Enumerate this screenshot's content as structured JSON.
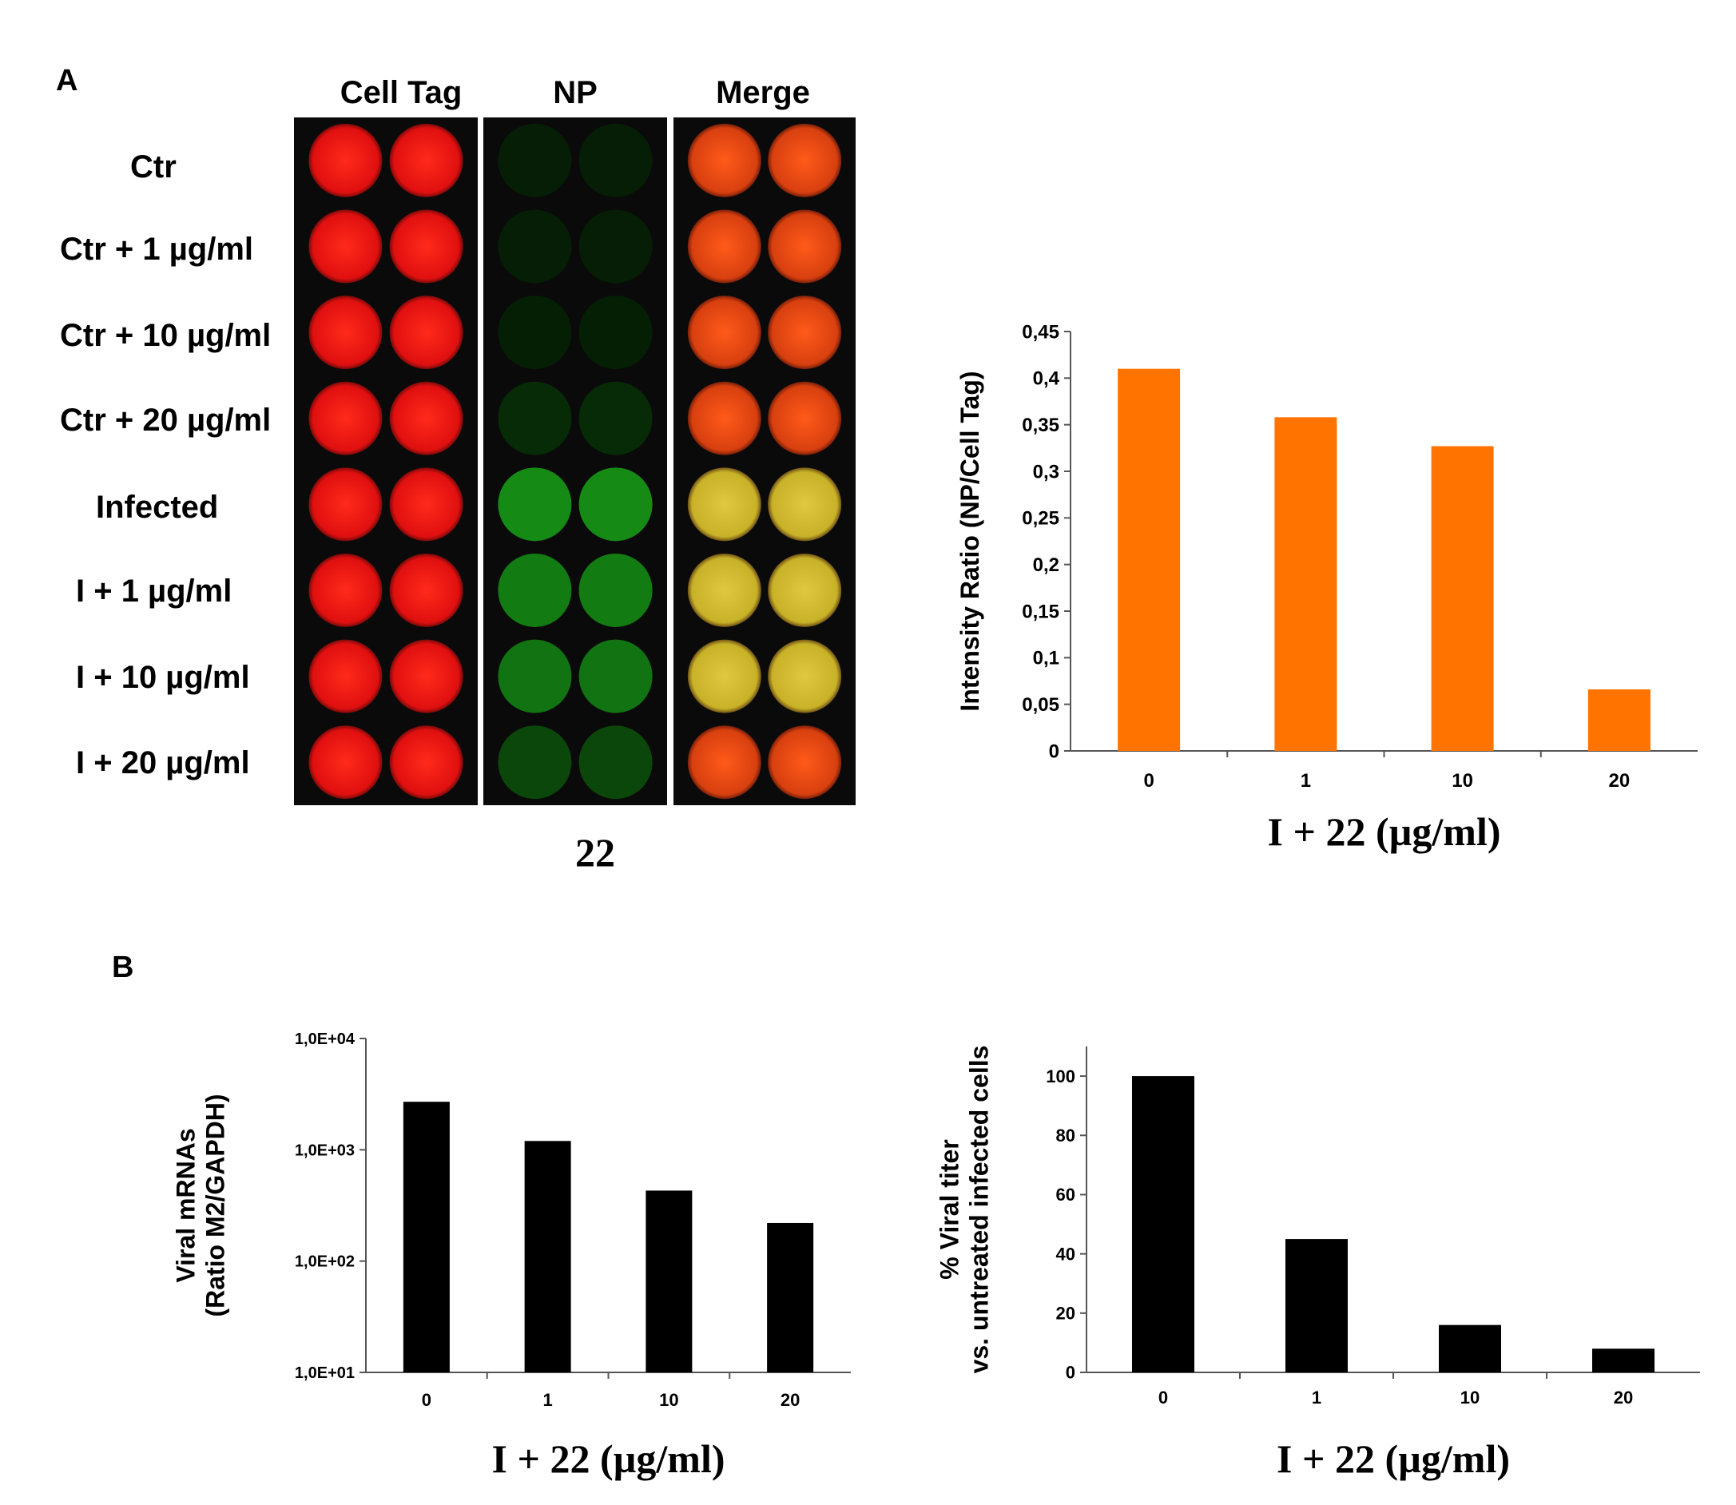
{
  "panel_a": {
    "letter": "A",
    "columns": [
      "Cell Tag",
      "NP",
      "Merge"
    ],
    "rows": [
      "Ctr",
      "Ctr + 1 µg/ml",
      "Ctr + 10 µg/ml",
      "Ctr + 20 µg/ml",
      "Infected",
      "I + 1 µg/ml",
      "I + 10 µg/ml",
      "I + 20 µg/ml"
    ],
    "compound_label": "22",
    "np_intensity": [
      0.03,
      0.03,
      0.04,
      0.12,
      0.75,
      0.65,
      0.6,
      0.3
    ],
    "colors": {
      "background": "#0a0a0a",
      "red": "#e01010",
      "green": "#1f9a25",
      "merge": "#c8b228",
      "divider": "#ffffff"
    }
  },
  "panel_b": {
    "letter": "B"
  },
  "chart_data": [
    {
      "id": "intensity",
      "type": "bar",
      "categories": [
        "0",
        "1",
        "10",
        "20"
      ],
      "values": [
        0.41,
        0.358,
        0.327,
        0.066
      ],
      "ylim": [
        0,
        0.45
      ],
      "yticks": [
        0,
        0.05,
        0.1,
        0.15,
        0.2,
        0.25,
        0.3,
        0.35,
        0.4,
        0.45
      ],
      "ytick_labels": [
        "0",
        "0,05",
        "0,1",
        "0,15",
        "0,2",
        "0,25",
        "0,3",
        "0,35",
        "0,4",
        "0,45"
      ],
      "ylabel": "Intensity Ratio (NP/Cell Tag)",
      "xlabel": "I + 22 (µg/ml)",
      "bar_color": "#ff7300"
    },
    {
      "id": "mrna",
      "type": "bar",
      "scale": "log",
      "categories": [
        "0",
        "1",
        "10",
        "20"
      ],
      "values": [
        2700,
        1200,
        430,
        220
      ],
      "ylim": [
        10,
        10000
      ],
      "yticks": [
        10,
        100,
        1000,
        10000
      ],
      "ytick_labels": [
        "1,0E+01",
        "1,0E+02",
        "1,0E+03",
        "1,0E+04"
      ],
      "ylabel": [
        "Viral mRNAs",
        "(Ratio M2/GAPDH)"
      ],
      "xlabel": "I + 22 (µg/ml)",
      "bar_color": "#000000"
    },
    {
      "id": "titer",
      "type": "bar",
      "categories": [
        "0",
        "1",
        "10",
        "20"
      ],
      "values": [
        100,
        45,
        16,
        8
      ],
      "ylim": [
        0,
        110
      ],
      "yticks": [
        0,
        20,
        40,
        60,
        80,
        100
      ],
      "ytick_labels": [
        "0",
        "20",
        "40",
        "60",
        "80",
        "100"
      ],
      "ylabel": [
        "% Viral titer",
        "vs. untreated infected cells"
      ],
      "xlabel": "I + 22 (µg/ml)",
      "bar_color": "#000000"
    }
  ]
}
